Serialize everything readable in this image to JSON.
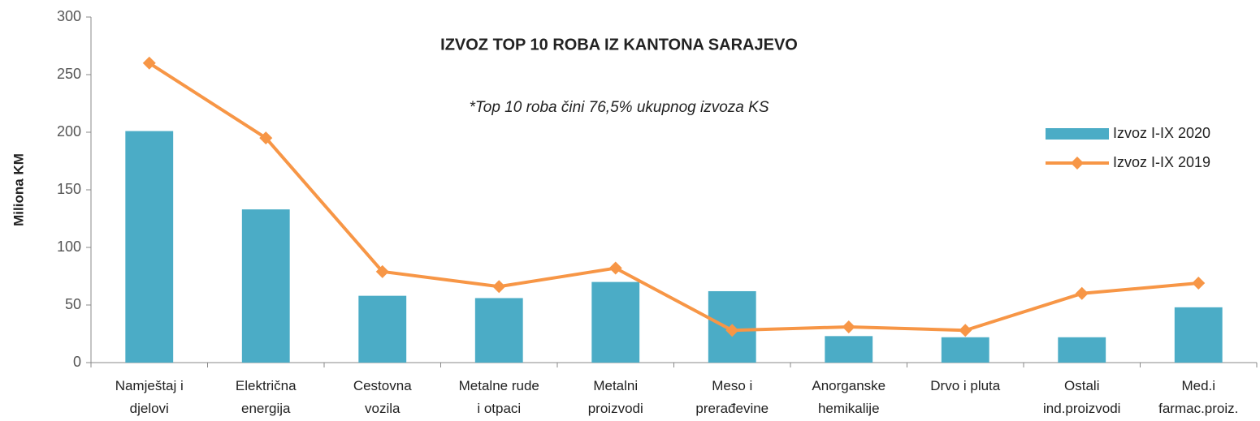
{
  "chart_data": {
    "type": "bar_line",
    "title": "IZVOZ TOP 10 ROBA IZ KANTONA SARAJEVO",
    "subtitle": "*Top 10 roba čini 76,5% ukupnog izvoza KS",
    "y_label": "Miliona KM",
    "categories": [
      "Namještaj i\ndjelovi",
      "Električna\nenergija",
      "Cestovna\nvozila",
      "Metalne rude\ni otpaci",
      "Metalni\nproizvodi",
      "Meso i\nprerađevine",
      "Anorganske\nhemikalije",
      "Drvo i pluta",
      "Ostali\nind.proizvodi",
      "Med.i\nfarmac.proiz."
    ],
    "series": [
      {
        "name": "Izvoz I-IX 2020",
        "type": "bar",
        "color": "#4bacc6",
        "values": [
          201,
          133,
          58,
          56,
          70,
          62,
          23,
          22,
          22,
          48
        ]
      },
      {
        "name": "Izvoz I-IX 2019",
        "type": "line",
        "color": "#f79646",
        "values": [
          260,
          195,
          79,
          66,
          82,
          28,
          31,
          28,
          60,
          69
        ]
      }
    ],
    "ylim": [
      0,
      300
    ],
    "yticks": [
      0,
      50,
      100,
      150,
      200,
      250,
      300
    ],
    "grid": false,
    "legend": "right"
  }
}
